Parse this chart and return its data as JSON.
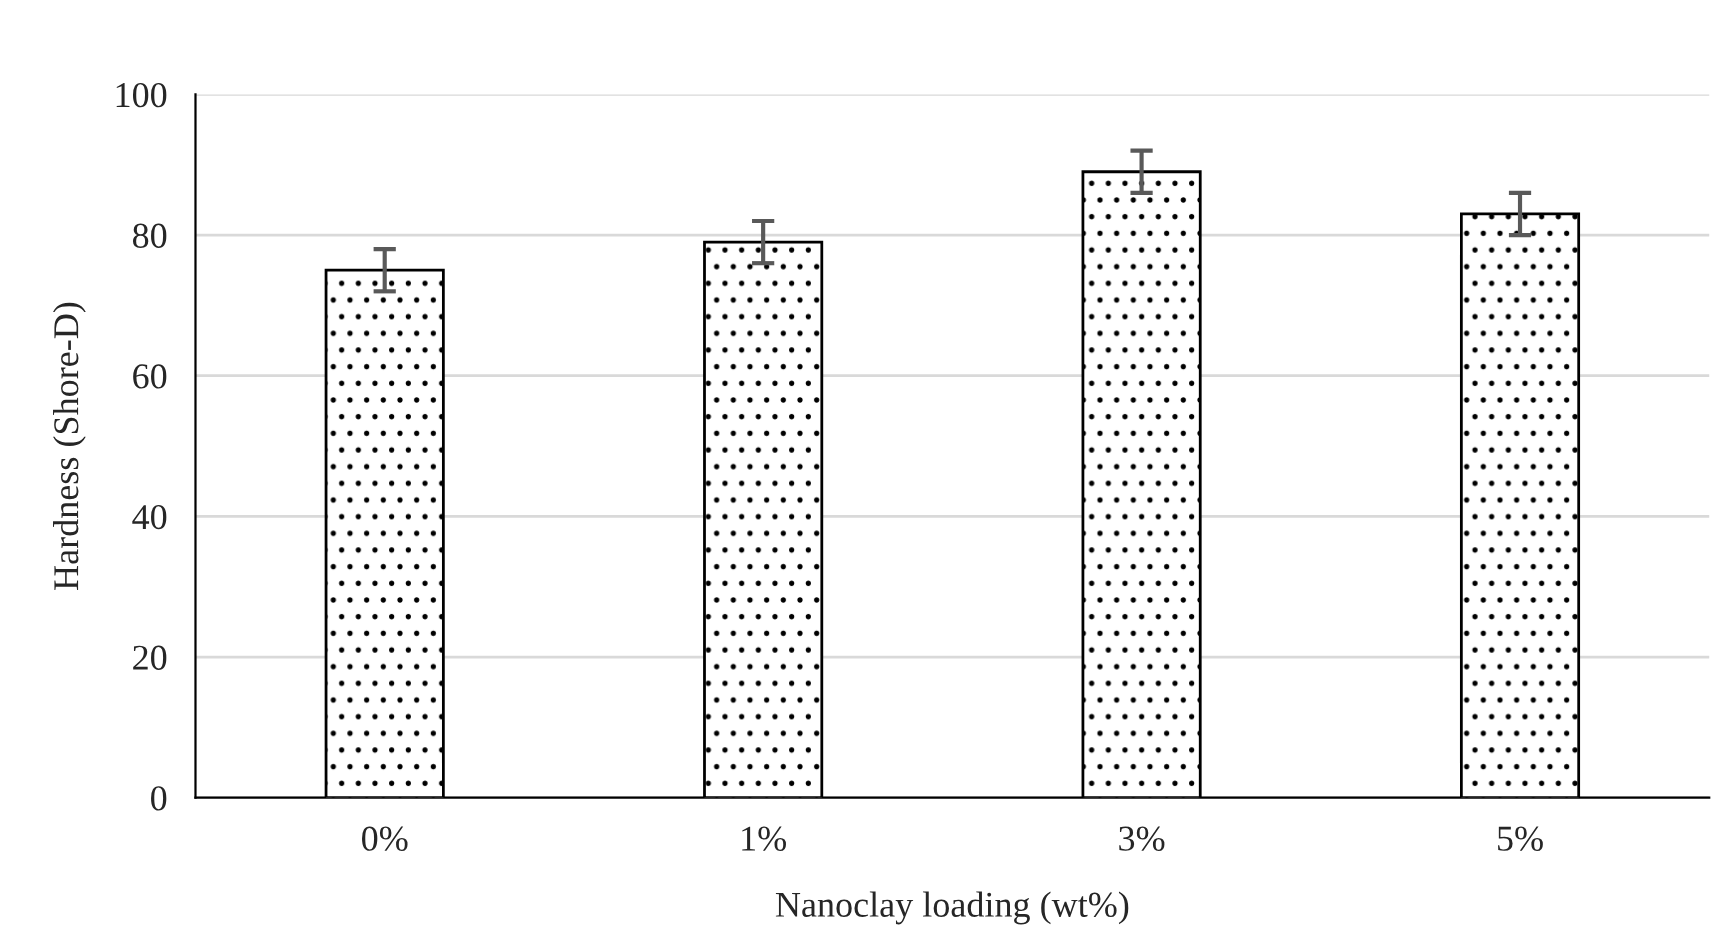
{
  "chart_data": {
    "type": "bar",
    "xlabel": "Nanoclay loading (wt%)",
    "ylabel": "Hardness (Shore-D)",
    "categories": [
      "0%",
      "1%",
      "3%",
      "5%"
    ],
    "values": [
      75,
      79,
      89,
      83
    ],
    "errors": [
      3,
      3,
      3,
      3
    ],
    "ylim": [
      0,
      100
    ],
    "yticks": [
      0,
      20,
      40,
      60,
      80,
      100
    ],
    "grid": "y"
  }
}
